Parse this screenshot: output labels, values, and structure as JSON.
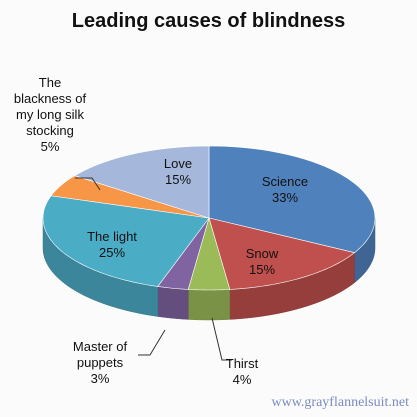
{
  "chart_data": {
    "type": "pie3d",
    "title": "Leading causes of blindness",
    "categories": [
      "Science",
      "Snow",
      "Thirst",
      "Master of puppets",
      "The light",
      "The blackness of my long silk stocking",
      "Love"
    ],
    "values": [
      33,
      15,
      4,
      3,
      25,
      5,
      15
    ],
    "value_labels": [
      "33%",
      "15%",
      "4%",
      "3%",
      "25%",
      "5%",
      "15%"
    ],
    "colors": [
      "#4f81bd",
      "#c0504d",
      "#9bbb59",
      "#8064a2",
      "#4bacc6",
      "#f79646",
      "#a5b8db"
    ],
    "source": "www.grayflannelsuit.net"
  }
}
